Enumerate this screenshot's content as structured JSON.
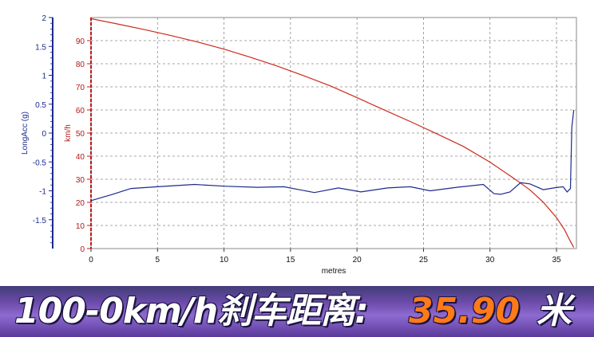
{
  "chart_data": {
    "type": "line",
    "xlabel": "metres",
    "xlim": [
      0,
      36.5
    ],
    "xticks": [
      0,
      5,
      10,
      15,
      20,
      25,
      30,
      35
    ],
    "left_axis": {
      "label": "LongAcc (g)",
      "ylim": [
        -2,
        2
      ],
      "ticks": [
        "2",
        "1.5",
        "1",
        "0.5",
        "0",
        "-0.5",
        "-1",
        "-1.5"
      ],
      "tick_values": [
        2,
        1.5,
        1,
        0.5,
        0,
        -0.5,
        -1,
        -1.5
      ],
      "color": "#1c2a8c"
    },
    "right_axis": {
      "label": "km/h",
      "ylim": [
        0,
        100
      ],
      "ticks": [
        "90",
        "80",
        "70",
        "60",
        "50",
        "40",
        "30",
        "20",
        "10",
        "0"
      ],
      "tick_values": [
        90,
        80,
        70,
        60,
        50,
        40,
        30,
        20,
        10,
        0
      ],
      "color": "#b01818"
    },
    "grid": true,
    "series": [
      {
        "axis": "right",
        "color": "#cc2a1a",
        "points": [
          [
            0,
            99.5
          ],
          [
            2,
            97.2
          ],
          [
            4,
            94.8
          ],
          [
            6,
            92.2
          ],
          [
            8,
            89.4
          ],
          [
            10,
            86.3
          ],
          [
            12,
            82.8
          ],
          [
            14,
            79.0
          ],
          [
            16,
            74.8
          ],
          [
            18,
            70.4
          ],
          [
            20,
            65.3
          ],
          [
            22,
            60.1
          ],
          [
            24,
            55.0
          ],
          [
            26,
            49.7
          ],
          [
            28,
            44.2
          ],
          [
            30,
            37.4
          ],
          [
            32,
            29.6
          ],
          [
            33,
            25.4
          ],
          [
            34,
            20.1
          ],
          [
            35,
            13.4
          ],
          [
            35.6,
            8.2
          ],
          [
            36.0,
            3.6
          ],
          [
            36.3,
            0.5
          ]
        ]
      },
      {
        "axis": "left",
        "color": "#1c2a8c",
        "points": [
          [
            0,
            -1.17
          ],
          [
            1.5,
            -1.07
          ],
          [
            3,
            -0.96
          ],
          [
            5,
            -0.93
          ],
          [
            7.8,
            -0.89
          ],
          [
            10,
            -0.92
          ],
          [
            12.5,
            -0.94
          ],
          [
            14.5,
            -0.93
          ],
          [
            16.8,
            -1.03
          ],
          [
            18.6,
            -0.95
          ],
          [
            20.3,
            -1.02
          ],
          [
            22.3,
            -0.95
          ],
          [
            24,
            -0.93
          ],
          [
            25.5,
            -1.0
          ],
          [
            27.5,
            -0.94
          ],
          [
            29.5,
            -0.89
          ],
          [
            30.3,
            -1.05
          ],
          [
            30.8,
            -1.06
          ],
          [
            31.5,
            -1.02
          ],
          [
            32.3,
            -0.86
          ],
          [
            33.0,
            -0.88
          ],
          [
            34.0,
            -0.98
          ],
          [
            34.8,
            -0.95
          ],
          [
            35.5,
            -0.93
          ],
          [
            35.8,
            -1.02
          ],
          [
            36.05,
            -0.96
          ],
          [
            36.15,
            0.1
          ],
          [
            36.3,
            0.4
          ]
        ]
      }
    ]
  },
  "banner": {
    "label": "100-0km/h刹车距离:",
    "value": "35.90",
    "unit": "米"
  }
}
